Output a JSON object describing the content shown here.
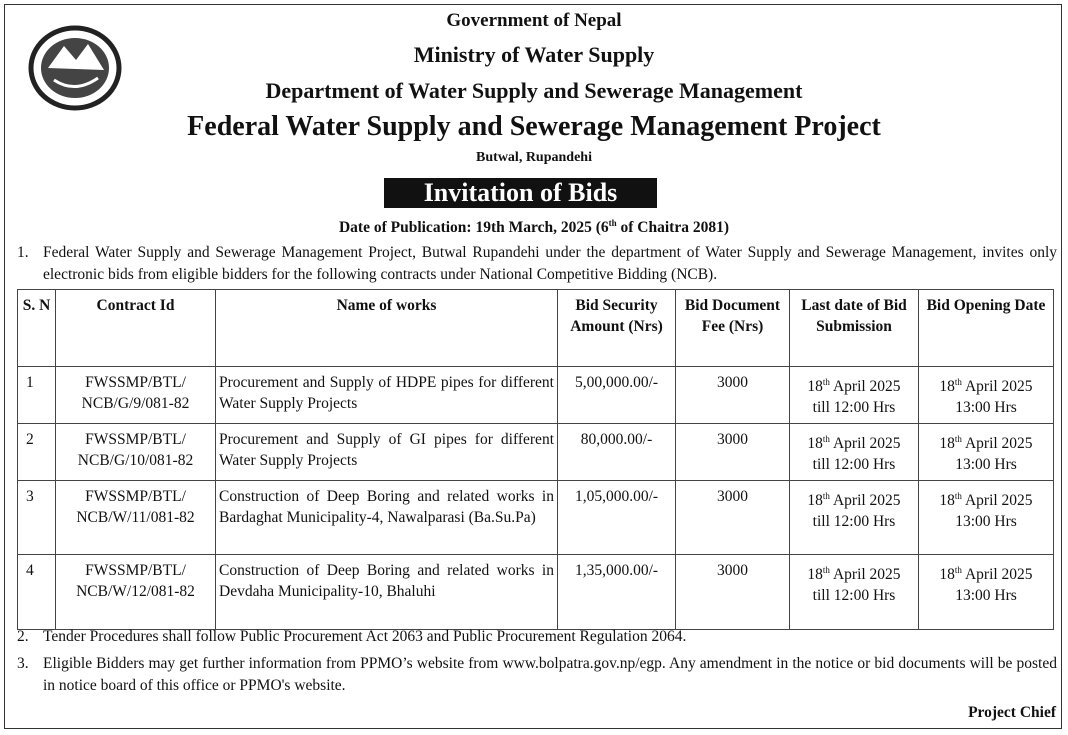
{
  "header": {
    "line1": "Government of Nepal",
    "line2": "Ministry of Water Supply",
    "line3": "Department of Water Supply and Sewerage Management",
    "line4": "Federal Water Supply and Sewerage Management Project",
    "location": "Butwal, Rupandehi",
    "title": "Invitation of Bids",
    "publication": {
      "before": "Date of Publication: 19th March, 2025 (6",
      "sup": "th",
      "after": " of Chaitra 2081)"
    }
  },
  "intro": {
    "number": "1.",
    "text": "Federal Water Supply and Sewerage Management Project, Butwal Rupandehi under the department of Water Supply and Sewerage Management, invites only electronic bids from eligible bidders for the following contracts under National Competitive Bidding (NCB)."
  },
  "table": {
    "columns": [
      "S. N",
      "Contract Id",
      "Name of works",
      "Bid Security Amount (Nrs)",
      "Bid Document Fee (Nrs)",
      "Last date of Bid Submission",
      "Bid Opening Date"
    ],
    "rows": [
      {
        "sn": "1",
        "contract_id": "FWSSMP/BTL/ NCB/G/9/081-82",
        "name": "Procurement and Supply of HDPE pipes for different Water Supply Projects",
        "amount": "5,00,000.00/-",
        "fee": "3000",
        "submission": {
          "day": "18",
          "suffix": "th",
          "month": " April 2025",
          "time": "till 12:00 Hrs"
        },
        "opening": {
          "day": "18",
          "suffix": "th",
          "month": " April 2025",
          "time": "13:00 Hrs"
        }
      },
      {
        "sn": "2",
        "contract_id": "FWSSMP/BTL/ NCB/G/10/081-82",
        "name": "Procurement and Supply of GI pipes for different Water Supply Projects",
        "amount": "80,000.00/-",
        "fee": "3000",
        "submission": {
          "day": "18",
          "suffix": "th",
          "month": " April 2025",
          "time": "till 12:00 Hrs"
        },
        "opening": {
          "day": "18",
          "suffix": "th",
          "month": " April 2025",
          "time": "13:00 Hrs"
        }
      },
      {
        "sn": "3",
        "contract_id": "FWSSMP/BTL/ NCB/W/11/081-82",
        "name": "Construction of Deep Boring and related works in Bardaghat Municipality-4, Nawalparasi (Ba.Su.Pa)",
        "amount": "1,05,000.00/-",
        "fee": "3000",
        "submission": {
          "day": "18",
          "suffix": "th",
          "month": " April 2025",
          "time": "till 12:00 Hrs"
        },
        "opening": {
          "day": "18",
          "suffix": "th",
          "month": " April 2025",
          "time": "13:00 Hrs"
        }
      },
      {
        "sn": "4",
        "contract_id": "FWSSMP/BTL/ NCB/W/12/081-82",
        "name": "Construction of Deep Boring and related works in Devdaha Municipality-10, Bhaluhi",
        "amount": "1,35,000.00/-",
        "fee": "3000",
        "submission": {
          "day": "18",
          "suffix": "th",
          "month": " April 2025",
          "time": "till 12:00 Hrs"
        },
        "opening": {
          "day": "18",
          "suffix": "th",
          "month": " April 2025",
          "time": "13:00 Hrs"
        }
      }
    ]
  },
  "notes": [
    {
      "number": "2.",
      "text": "Tender Procedures shall follow Public Procurement Act 2063 and Public Procurement Regulation 2064."
    },
    {
      "number": "3.",
      "text": "Eligible Bidders may get further information from PPMO’s website from www.bolpatra.gov.np/egp. Any amendment in the notice or bid documents will be posted in notice board of this office or PPMO's website."
    }
  ],
  "footer": "Project Chief"
}
